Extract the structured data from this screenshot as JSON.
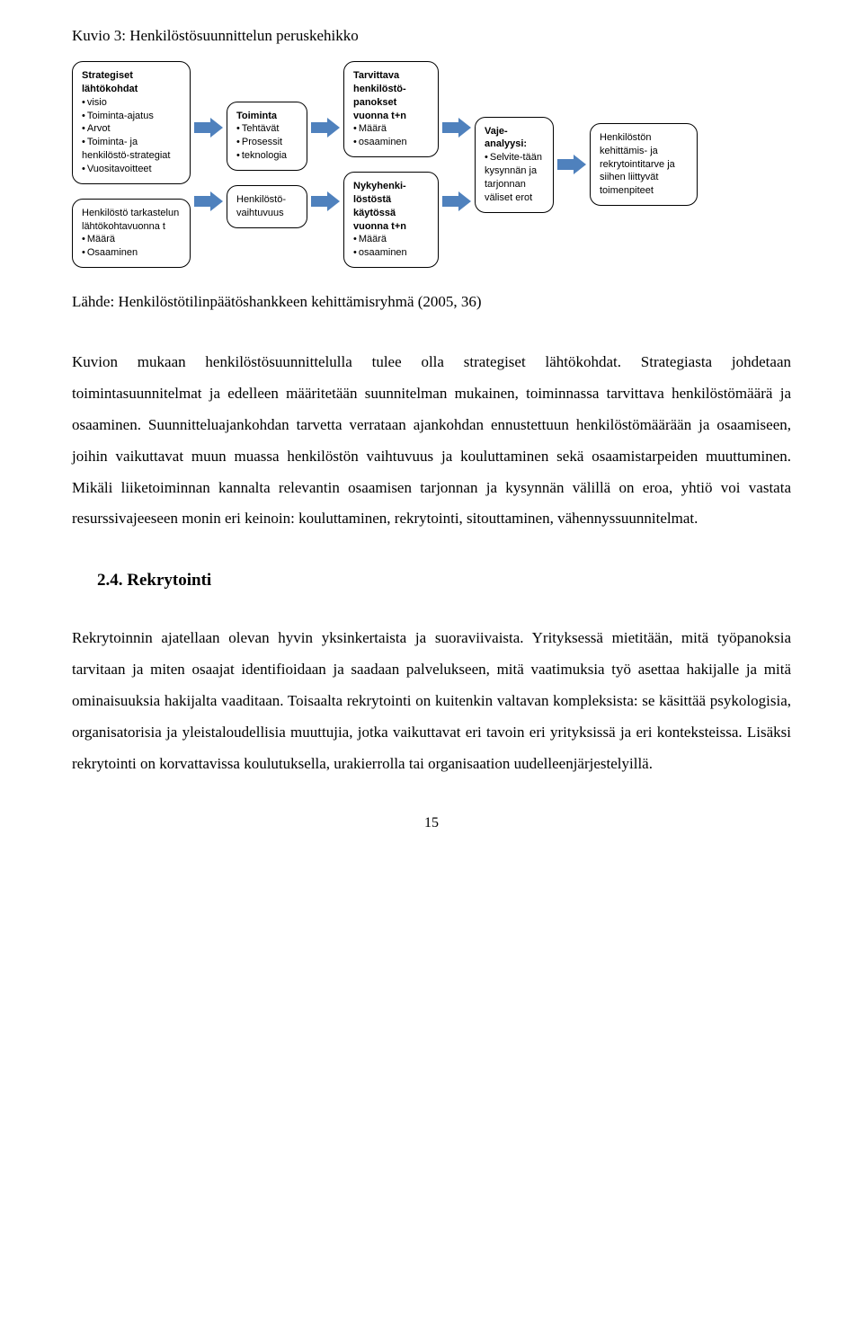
{
  "figure_title": "Kuvio 3: Henkilöstösuunnittelun peruskehikko",
  "arrow_color": "#4f81bd",
  "boxes": {
    "b1a_title": "Strategiset lähtökohdat",
    "b1a_items": [
      "visio",
      "Toiminta-ajatus",
      "Arvot",
      "Toiminta- ja henkilöstö-strategiat",
      "Vuositavoitteet"
    ],
    "b1b_text": "Henkilöstö tarkastelun lähtökohtavuonna t",
    "b1b_items": [
      "Määrä",
      "Osaaminen"
    ],
    "b2a_title": "Toiminta",
    "b2a_items": [
      "Tehtävät",
      "Prosessit",
      "teknologia"
    ],
    "b2b_text": "Henkilöstö-vaihtuvuus",
    "b3a_title": "Tarvittava henkilöstö-panokset vuonna t+n",
    "b3a_items": [
      "Määrä",
      "osaaminen"
    ],
    "b3b_title": "Nykyhenki-löstöstä käytössä vuonna t+n",
    "b3b_items": [
      "Määrä",
      "osaaminen"
    ],
    "b4_title": "Vaje-analyysi:",
    "b4_items": [
      "Selvite-tään kysynnän ja tarjonnan väliset erot"
    ],
    "b5_text": "Henkilöstön kehittämis- ja rekrytointitarve ja siihen liittyvät toimenpiteet"
  },
  "source": "Lähde: Henkilöstötilinpäätöshankkeen kehittämisryhmä (2005, 36)",
  "para1": "Kuvion mukaan henkilöstösuunnittelulla tulee olla strategiset lähtökohdat. Strategiasta johdetaan toimintasuunnitelmat ja edelleen määritetään suunnitelman mukainen, toiminnassa tarvittava henkilöstömäärä ja osaaminen. Suunnitteluajankohdan tarvetta verrataan ajankohdan ennustettuun henkilöstömäärään ja osaamiseen, joihin vaikuttavat muun muassa henkilöstön vaihtuvuus ja kouluttaminen sekä osaamistarpeiden muuttuminen. Mikäli liiketoiminnan kannalta relevantin osaamisen tarjonnan ja kysynnän välillä on eroa, yhtiö voi vastata resurssivajeeseen monin eri keinoin: kouluttaminen, rekrytointi, sitouttaminen, vähennyssuunnitelmat.",
  "heading": "2.4. Rekrytointi",
  "para2": "Rekrytoinnin ajatellaan olevan hyvin yksinkertaista ja suoraviivaista. Yrityksessä mietitään, mitä työpanoksia tarvitaan ja miten osaajat identifioidaan ja saadaan palvelukseen, mitä vaatimuksia työ asettaa hakijalle ja mitä ominaisuuksia hakijalta vaaditaan. Toisaalta rekrytointi on kuitenkin valtavan kompleksista: se käsittää psykologisia, organisatorisia ja yleistaloudellisia muuttujia, jotka vaikuttavat eri tavoin eri yrityksissä ja eri konteksteissa. Lisäksi rekrytointi on korvattavissa koulutuksella, urakierrolla tai organisaation uudelleenjärjestelyillä.",
  "page_number": "15"
}
